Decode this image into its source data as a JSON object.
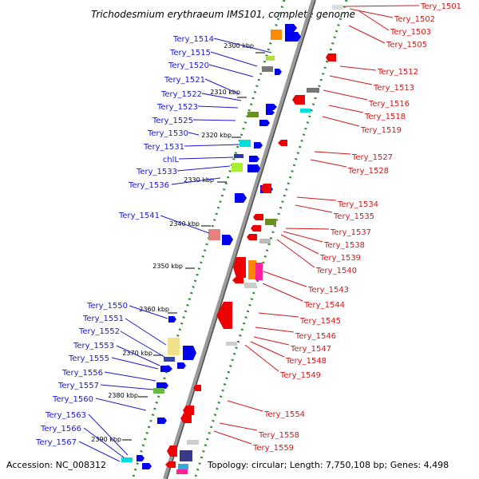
{
  "title": "Trichodesmium erythraeum IMS101, complete genome",
  "accession": "Accession: NC_008312",
  "topology": "Topology: circular; Length: 7,750,108 bp; Genes: 4,498",
  "colors": {
    "backbone": "#9a9a9a",
    "backbone_dark": "#555555",
    "track": "#2e8b2e",
    "left_label": "#1a1acc",
    "right_label": "#cc1a1a",
    "minus_strand": "#0000ee",
    "plus_strand": "#ee0000"
  },
  "kbp_markers": [
    "2300 kbp",
    "2310 kbp",
    "2320 kbp",
    "2330 kbp",
    "2340 kbp",
    "2350 kbp",
    "2360 kbp",
    "2370 kbp",
    "2380 kbp",
    "2390 kbp"
  ],
  "left_genes": [
    "Tery_1514",
    "Tery_1515",
    "Tery_1520",
    "Tery_1521",
    "Tery_1522",
    "Tery_1523",
    "Tery_1525",
    "Tery_1530",
    "Tery_1531",
    "chlL",
    "Tery_1533",
    "Tery_1536",
    "Tery_1541",
    "Tery_1550",
    "Tery_1551",
    "Tery_1552",
    "Tery_1553",
    "Tery_1555",
    "Tery_1556",
    "Tery_1557",
    "Tery_1560",
    "Tery_1563",
    "Tery_1566",
    "Tery_1567"
  ],
  "right_genes": [
    "Tery_1501",
    "Tery_1502",
    "Tery_1503",
    "Tery_1505",
    "Tery_1512",
    "Tery_1513",
    "Tery_1516",
    "Tery_1518",
    "Tery_1519",
    "Tery_1527",
    "Tery_1528",
    "Tery_1534",
    "Tery_1535",
    "Tery_1537",
    "Tery_1538",
    "Tery_1539",
    "Tery_1540",
    "Tery_1543",
    "Tery_1544",
    "Tery_1545",
    "Tery_1546",
    "Tery_1547",
    "Tery_1548",
    "Tery_1549",
    "Tery_1554",
    "Tery_1558",
    "Tery_1559"
  ]
}
